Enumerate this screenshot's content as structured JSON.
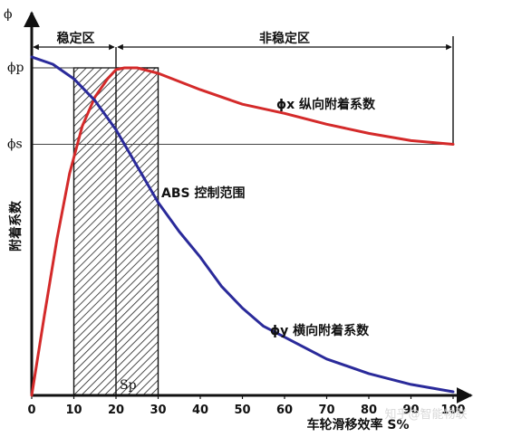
{
  "chart_data": {
    "type": "line",
    "ylabel": "附着系数",
    "y_axis_symbol": "ϕ",
    "xlabel": "车轮滑移效率 S%",
    "xlim": [
      0,
      100
    ],
    "ylim": [
      0,
      1.0
    ],
    "x_ticks": [
      0,
      10,
      20,
      30,
      40,
      50,
      60,
      70,
      80,
      90,
      100
    ],
    "y_marks": [
      {
        "label": "ϕp",
        "value": 0.9
      },
      {
        "label": "ϕs",
        "value": 0.69
      }
    ],
    "regions": {
      "stable_label": "稳定区",
      "unstable_label": "非稳定区",
      "split_x": 20
    },
    "abs_range": {
      "label": "ABS 控制范围",
      "from": 10,
      "to": 30
    },
    "sp_label": "Sp",
    "sp_x": 20,
    "series": [
      {
        "name": "ϕx 纵向附着系数",
        "color": "#d42a2a",
        "x": [
          0,
          3,
          6,
          9,
          12,
          15,
          18,
          20,
          22,
          25,
          30,
          40,
          50,
          60,
          70,
          80,
          90,
          100
        ],
        "y": [
          0.0,
          0.22,
          0.43,
          0.61,
          0.74,
          0.82,
          0.87,
          0.895,
          0.9,
          0.9,
          0.885,
          0.84,
          0.8,
          0.775,
          0.745,
          0.72,
          0.7,
          0.69
        ]
      },
      {
        "name": "ϕy 横向附着系数",
        "color": "#2a2a9a",
        "x": [
          0,
          5,
          10,
          15,
          20,
          25,
          30,
          35,
          40,
          45,
          50,
          55,
          60,
          70,
          80,
          90,
          100
        ],
        "y": [
          0.93,
          0.91,
          0.87,
          0.81,
          0.73,
          0.63,
          0.53,
          0.45,
          0.38,
          0.3,
          0.24,
          0.19,
          0.16,
          0.1,
          0.06,
          0.03,
          0.01
        ]
      }
    ]
  },
  "watermark": "知乎@智能物联"
}
